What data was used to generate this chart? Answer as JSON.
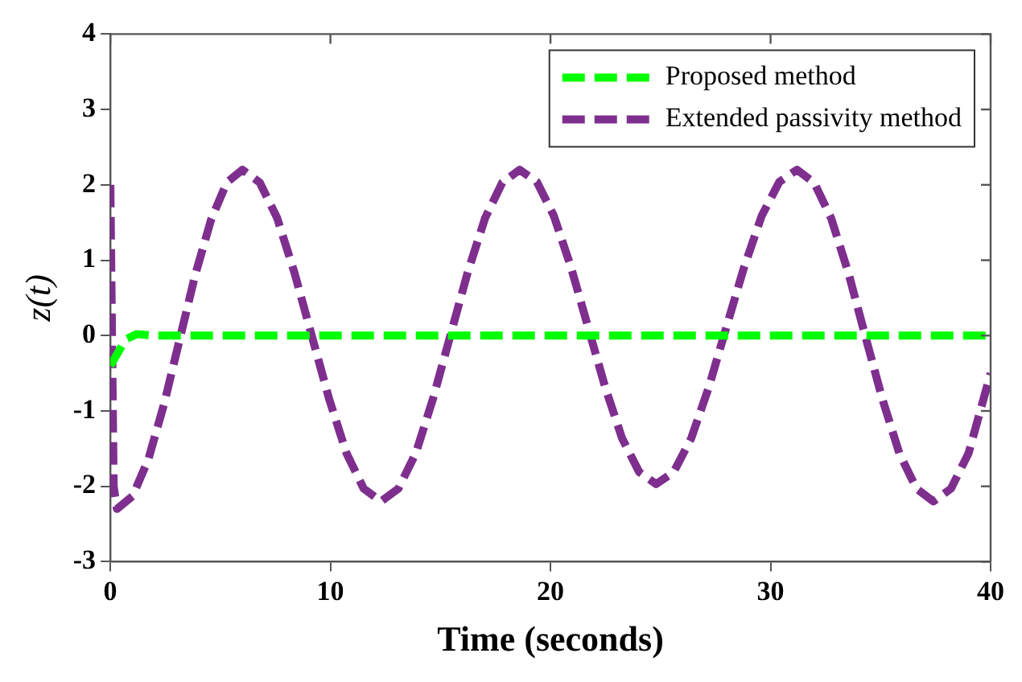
{
  "chart_data": {
    "type": "line",
    "xlabel": "Time (seconds)",
    "ylabel": "z(t)",
    "xlim": [
      0,
      40
    ],
    "xticks": [
      0,
      10,
      20,
      30,
      40
    ],
    "ylim": [
      -3,
      4
    ],
    "yticks": [
      -3,
      -2,
      -1,
      0,
      1,
      2,
      3,
      4
    ],
    "grid": false,
    "legend": "top right",
    "line_style": "dashed",
    "marker": "none",
    "series": [
      {
        "name": "Proposed method",
        "color": "#00ff00",
        "x": [
          0,
          0.3,
          0.7,
          1.2,
          2,
          10,
          20,
          30,
          40
        ],
        "values": [
          -0.4,
          -0.25,
          -0.05,
          0.02,
          0,
          0,
          0,
          0,
          0
        ]
      },
      {
        "name": "Extended passivity method",
        "color": "#7e2f8e",
        "x": [
          0,
          0.15,
          0.3,
          1.01,
          1.73,
          2.44,
          3.15,
          3.86,
          4.58,
          5.29,
          6.0,
          6.79,
          7.58,
          8.36,
          9.15,
          9.94,
          10.73,
          11.51,
          12.3,
          13.09,
          13.88,
          14.66,
          15.45,
          16.24,
          17.03,
          17.81,
          18.6,
          19.38,
          20.15,
          20.93,
          21.7,
          22.48,
          23.25,
          24.03,
          24.8,
          25.6,
          26.4,
          27.2,
          28.0,
          28.8,
          29.6,
          30.4,
          31.2,
          31.98,
          32.75,
          33.53,
          34.3,
          35.08,
          35.85,
          36.63,
          37.4,
          38.2,
          39.0,
          40
        ],
        "values": [
          2.0,
          -2.0,
          -2.3,
          -2.13,
          -1.64,
          -0.91,
          -0.05,
          0.81,
          1.54,
          2.03,
          2.2,
          2.03,
          1.56,
          0.84,
          0,
          -0.84,
          -1.56,
          -2.03,
          -2.2,
          -2.03,
          -1.56,
          -0.84,
          0,
          0.84,
          1.56,
          2.03,
          2.2,
          2.04,
          1.59,
          0.91,
          0.12,
          -0.68,
          -1.36,
          -1.81,
          -1.97,
          -1.81,
          -1.36,
          -0.68,
          0.12,
          0.91,
          1.59,
          2.04,
          2.2,
          2.03,
          1.56,
          0.84,
          0,
          -0.84,
          -1.56,
          -2.03,
          -2.2,
          -2.03,
          -1.56,
          -0.5
        ]
      }
    ]
  }
}
